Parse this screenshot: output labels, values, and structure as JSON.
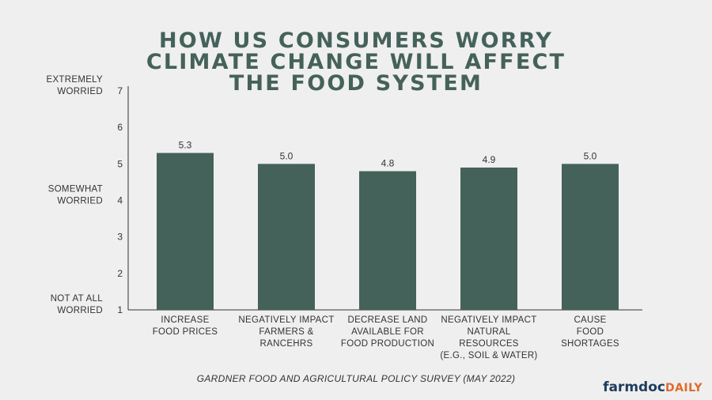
{
  "colors": {
    "background": "#efefef",
    "bar": "#45625a",
    "title": "#45625a",
    "axis": "#333333",
    "brand_main": "#1e3d5c",
    "brand_accent": "#e06a2b"
  },
  "source": "GARDNER FOOD AND AGRICULTURAL POLICY SURVEY (MAY 2022)",
  "brand": {
    "main": "farmdoc",
    "accent": "DAILY"
  },
  "chart_data": {
    "type": "bar",
    "title_lines": [
      "HOW US CONSUMERS WORRY",
      "CLIMATE CHANGE WILL AFFECT",
      "THE FOOD SYSTEM"
    ],
    "title": "HOW US CONSUMERS WORRY CLIMATE CHANGE WILL AFFECT THE FOOD SYSTEM",
    "categories": [
      [
        "INCREASE",
        "FOOD PRICES"
      ],
      [
        "NEGATIVELY IMPACT",
        "FARMERS &",
        "RANCEHRS"
      ],
      [
        "DECREASE LAND",
        "AVAILABLE FOR",
        "FOOD PRODUCTION"
      ],
      [
        "NEGATIVELY IMPACT",
        "NATURAL",
        "RESOURCES",
        "(E.G., SOIL & WATER)"
      ],
      [
        "CAUSE",
        "FOOD",
        "SHORTAGES"
      ]
    ],
    "values": [
      5.3,
      5.0,
      4.8,
      4.9,
      5.0
    ],
    "value_labels": [
      "5.3",
      "5.0",
      "4.8",
      "4.9",
      "5.0"
    ],
    "ylim": [
      1,
      7
    ],
    "yticks": [
      1,
      2,
      3,
      4,
      5,
      6,
      7
    ],
    "scale_labels": [
      {
        "value": 7,
        "lines": [
          "EXTREMELY",
          "WORRIED"
        ]
      },
      {
        "value": 4,
        "lines": [
          "SOMEWHAT",
          "WORRIED"
        ]
      },
      {
        "value": 1,
        "lines": [
          "NOT AT ALL",
          "WORRIED"
        ]
      }
    ],
    "xlabel": "",
    "ylabel": "",
    "grid": false
  }
}
